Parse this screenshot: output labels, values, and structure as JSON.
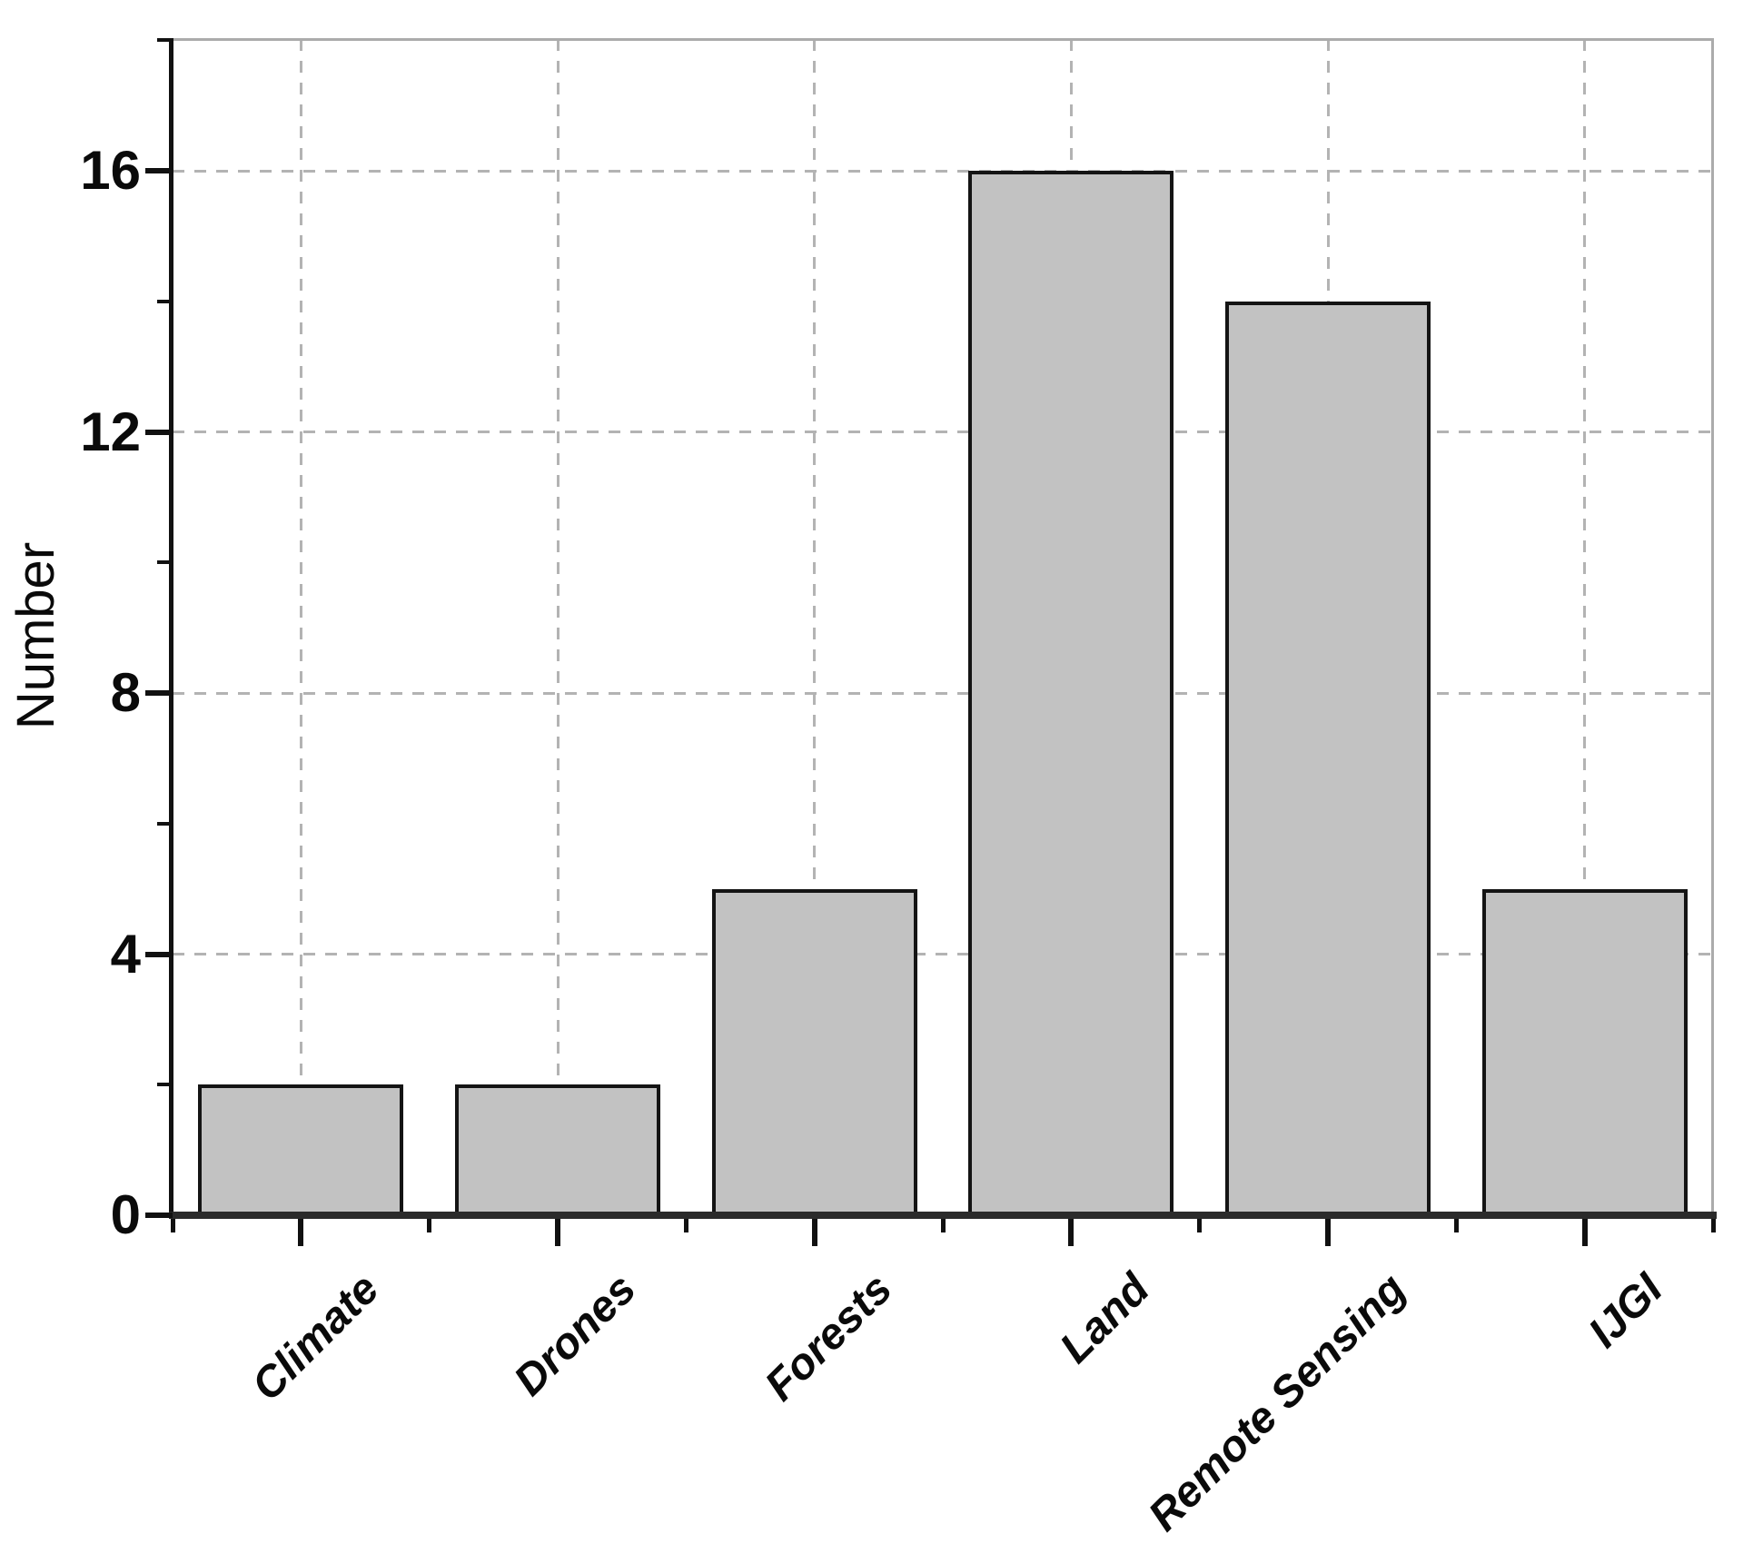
{
  "chart_data": {
    "type": "bar",
    "categories": [
      "Climate",
      "Drones",
      "Forests",
      "Land",
      "Remote Sensing",
      "IJGI"
    ],
    "values": [
      2,
      2,
      5,
      16,
      14,
      5
    ],
    "title": "",
    "xlabel": "",
    "ylabel": "Number",
    "ylim": [
      0,
      18
    ],
    "yticks_major": [
      0,
      4,
      8,
      12,
      16
    ],
    "ytick_labels": [
      "0",
      "4",
      "8",
      "12",
      "16"
    ],
    "yticks_minor": [
      2,
      6,
      10,
      14,
      18
    ],
    "grid": {
      "horizontal": "dashed at major y ticks",
      "vertical": "dashed at category centers",
      "style": "dashed"
    },
    "legend": "none",
    "colors": {
      "bar_fill": "#c2c2c2",
      "bar_edge": "#141414",
      "grid_line": "#b3b3b3",
      "axis_line": "#111111",
      "frame_line": "#ababab",
      "background": "#ffffff",
      "text": "#0a0a0a"
    }
  }
}
